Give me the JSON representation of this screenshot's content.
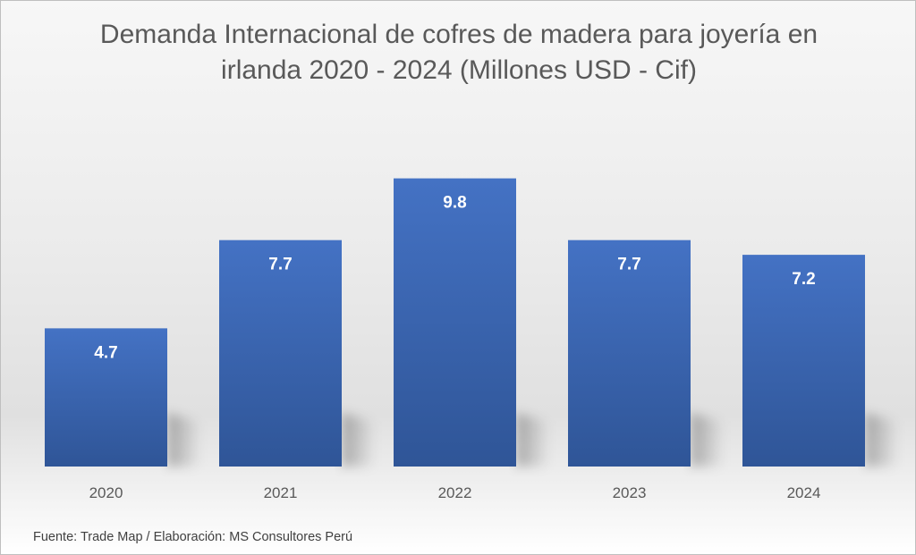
{
  "chart_data": {
    "type": "bar",
    "title": "Demanda Internacional de cofres de madera para joyería en irlanda 2020 - 2024 (Millones USD - Cif)",
    "categories": [
      "2020",
      "2021",
      "2022",
      "2023",
      "2024"
    ],
    "values": [
      4.7,
      7.7,
      9.8,
      7.7,
      7.2
    ],
    "data_labels": [
      "4.7",
      "7.7",
      "9.8",
      "7.7",
      "7.2"
    ],
    "xlabel": "",
    "ylabel": "",
    "ylim": [
      0,
      10
    ],
    "grid": false,
    "legend": "none",
    "bar_color": "#4472c4",
    "bar_color_dark": "#2f5597",
    "label_color": "#ffffff"
  },
  "footer": {
    "source": "Fuente: Trade Map / Elaboración: MS Consultores Perú"
  }
}
